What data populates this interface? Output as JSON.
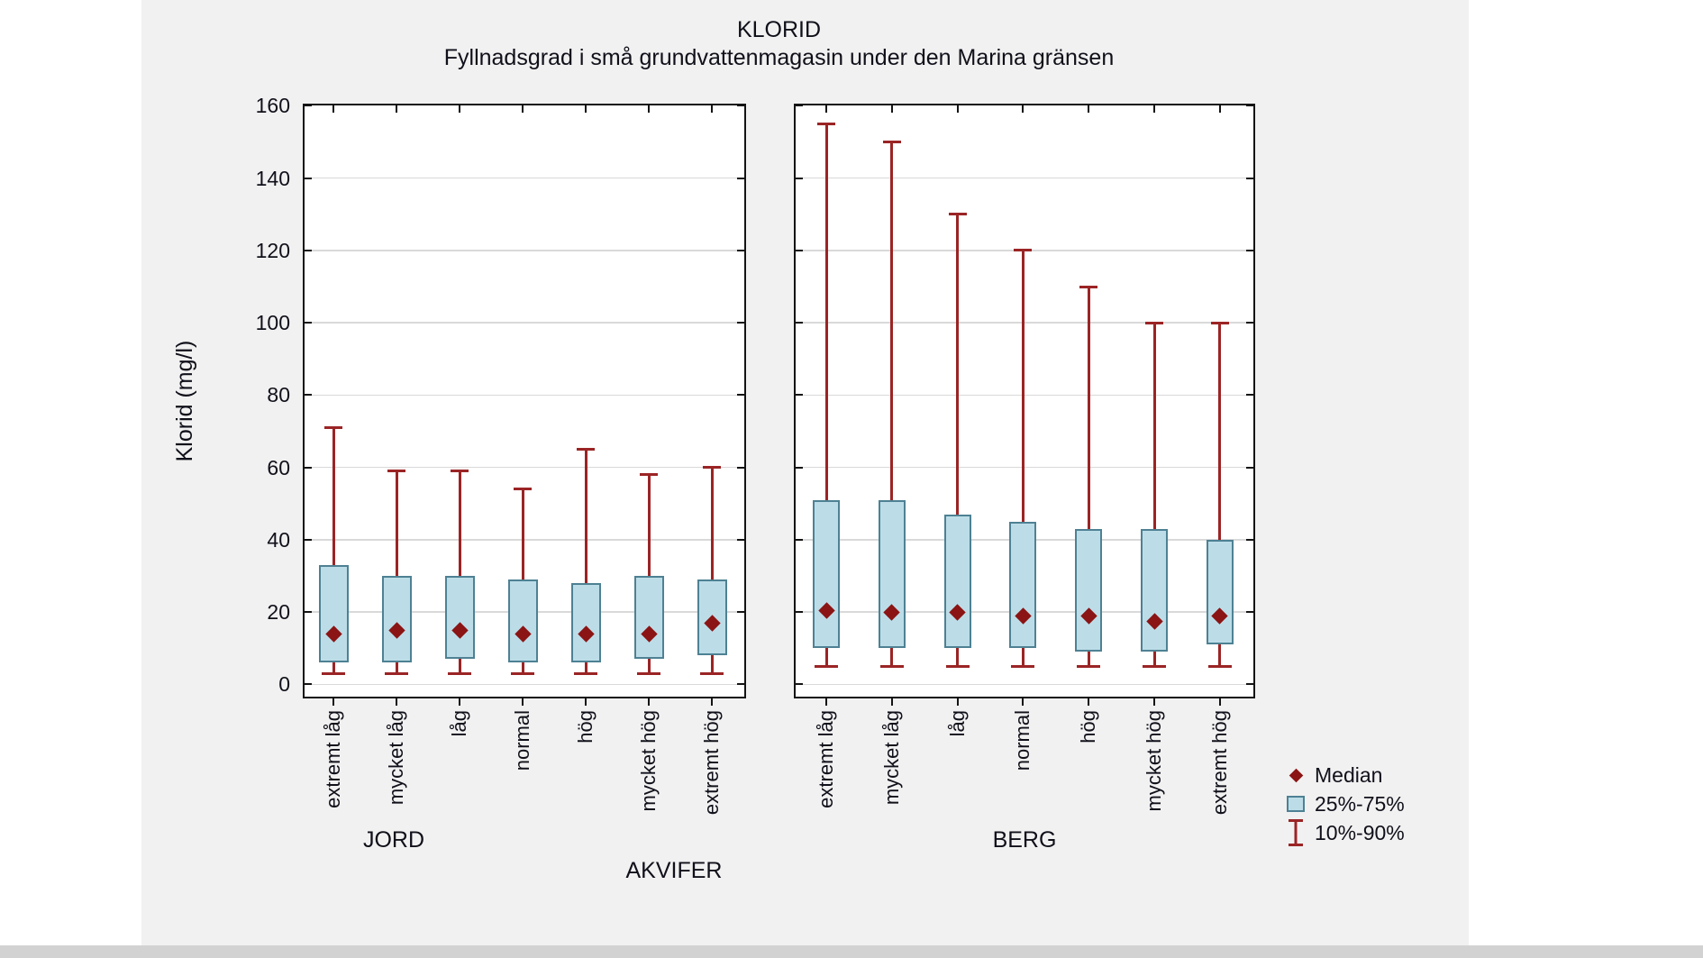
{
  "window": {
    "canvas_background": "#f1f1f1",
    "outer_background": "#ffffff"
  },
  "colors": {
    "box_fill": "#bcdde8",
    "box_border": "#4e8193",
    "whisker": "#9b2425",
    "median": "#8b1414",
    "grid": "#d9d9d9",
    "frame": "#141414",
    "text": "#10101a"
  },
  "chart_data": {
    "type": "boxplot",
    "title": "KLORID",
    "subtitle": "Fyllnadsgrad i små grundvattenmagasin under den Marina gränsen",
    "ylabel": "Klorid (mg/l)",
    "xlabel": "AKVIFER",
    "ylim": [
      0,
      160
    ],
    "yticks": [
      0,
      20,
      40,
      60,
      80,
      100,
      120,
      140,
      160
    ],
    "grid": true,
    "categories": [
      "extremt låg",
      "mycket låg",
      "låg",
      "normal",
      "hög",
      "mycket hög",
      "extremt hög"
    ],
    "groups": [
      {
        "name": "JORD",
        "boxes": [
          {
            "category": "extremt låg",
            "p10": 3,
            "p25": 6,
            "median": 14,
            "p75": 33,
            "p90": 71
          },
          {
            "category": "mycket låg",
            "p10": 3,
            "p25": 6,
            "median": 15,
            "p75": 30,
            "p90": 59
          },
          {
            "category": "låg",
            "p10": 3,
            "p25": 7,
            "median": 15,
            "p75": 30,
            "p90": 59
          },
          {
            "category": "normal",
            "p10": 3,
            "p25": 6,
            "median": 14,
            "p75": 29,
            "p90": 54
          },
          {
            "category": "hög",
            "p10": 3,
            "p25": 6,
            "median": 14,
            "p75": 28,
            "p90": 65
          },
          {
            "category": "mycket hög",
            "p10": 3,
            "p25": 7,
            "median": 14,
            "p75": 30,
            "p90": 58
          },
          {
            "category": "extremt hög",
            "p10": 3,
            "p25": 8,
            "median": 17,
            "p75": 29,
            "p90": 60
          }
        ]
      },
      {
        "name": "BERG",
        "boxes": [
          {
            "category": "extremt låg",
            "p10": 5,
            "p25": 10,
            "median": 20.5,
            "p75": 51,
            "p90": 155
          },
          {
            "category": "mycket låg",
            "p10": 5,
            "p25": 10,
            "median": 20,
            "p75": 51,
            "p90": 150
          },
          {
            "category": "låg",
            "p10": 5,
            "p25": 10,
            "median": 20,
            "p75": 47,
            "p90": 130
          },
          {
            "category": "normal",
            "p10": 5,
            "p25": 10,
            "median": 19,
            "p75": 45,
            "p90": 120
          },
          {
            "category": "hög",
            "p10": 5,
            "p25": 9,
            "median": 19,
            "p75": 43,
            "p90": 110
          },
          {
            "category": "mycket hög",
            "p10": 5,
            "p25": 9,
            "median": 17.5,
            "p75": 43,
            "p90": 100
          },
          {
            "category": "extremt hög",
            "p10": 5,
            "p25": 11,
            "median": 19,
            "p75": 40,
            "p90": 100
          }
        ]
      }
    ],
    "legend": [
      {
        "symbol": "median-diamond",
        "label": "Median"
      },
      {
        "symbol": "iqr-box",
        "label": "25%-75%"
      },
      {
        "symbol": "whisker-range",
        "label": "10%-90%"
      }
    ],
    "legend_position": "bottom-right"
  }
}
